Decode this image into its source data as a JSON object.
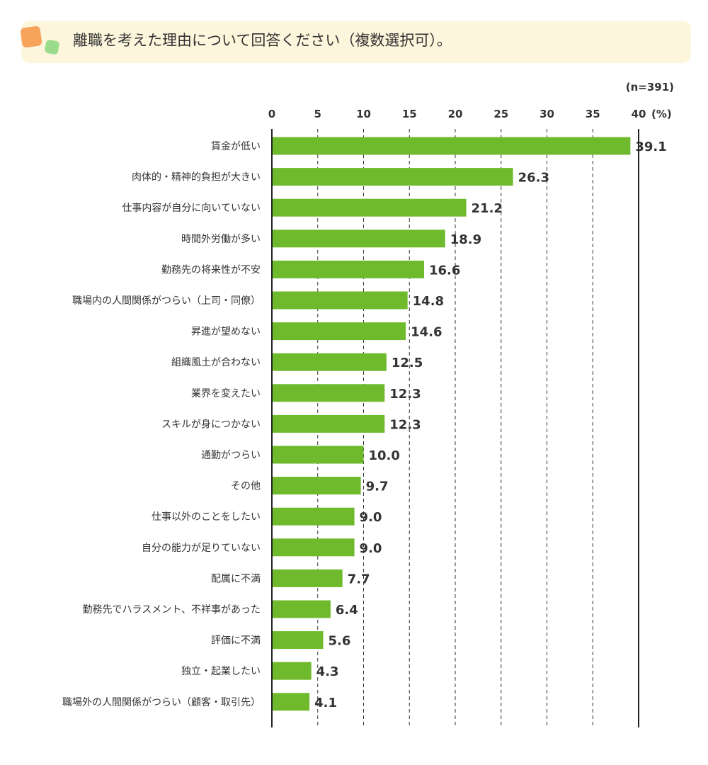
{
  "header": {
    "title": "離職を考えた理由について回答ください（複数選択可）。"
  },
  "sample_size": "(n=391)",
  "chart_data": {
    "type": "bar",
    "orientation": "horizontal",
    "title": "離職を考えた理由について回答ください（複数選択可）。",
    "unit_label": "(%)",
    "xlim": [
      0,
      40
    ],
    "xticks": [
      0,
      5,
      10,
      15,
      20,
      25,
      30,
      35,
      40
    ],
    "grid": "dashed vertical",
    "bar_color": "#6fba2c",
    "categories": [
      "賃金が低い",
      "肉体的・精神的負担が大きい",
      "仕事内容が自分に向いていない",
      "時間外労働が多い",
      "勤務先の将来性が不安",
      "職場内の人間関係がつらい（上司・同僚）",
      "昇進が望めない",
      "組織風土が合わない",
      "業界を変えたい",
      "スキルが身につかない",
      "通勤がつらい",
      "その他",
      "仕事以外のことをしたい",
      "自分の能力が足りていない",
      "配属に不満",
      "勤務先でハラスメント、不祥事があった",
      "評価に不満",
      "独立・起業したい",
      "職場外の人間関係がつらい（顧客・取引先）"
    ],
    "values": [
      39.1,
      26.3,
      21.2,
      18.9,
      16.6,
      14.8,
      14.6,
      12.5,
      12.3,
      12.3,
      10.0,
      9.7,
      9.0,
      9.0,
      7.7,
      6.4,
      5.6,
      4.3,
      4.1
    ],
    "value_labels": [
      "39.1",
      "26.3",
      "21.2",
      "18.9",
      "16.6",
      "14.8",
      "14.6",
      "12.5",
      "12.3",
      "12.3",
      "10.0",
      "9.7",
      "9.0",
      "9.0",
      "7.7",
      "6.4",
      "5.6",
      "4.3",
      "4.1"
    ]
  }
}
